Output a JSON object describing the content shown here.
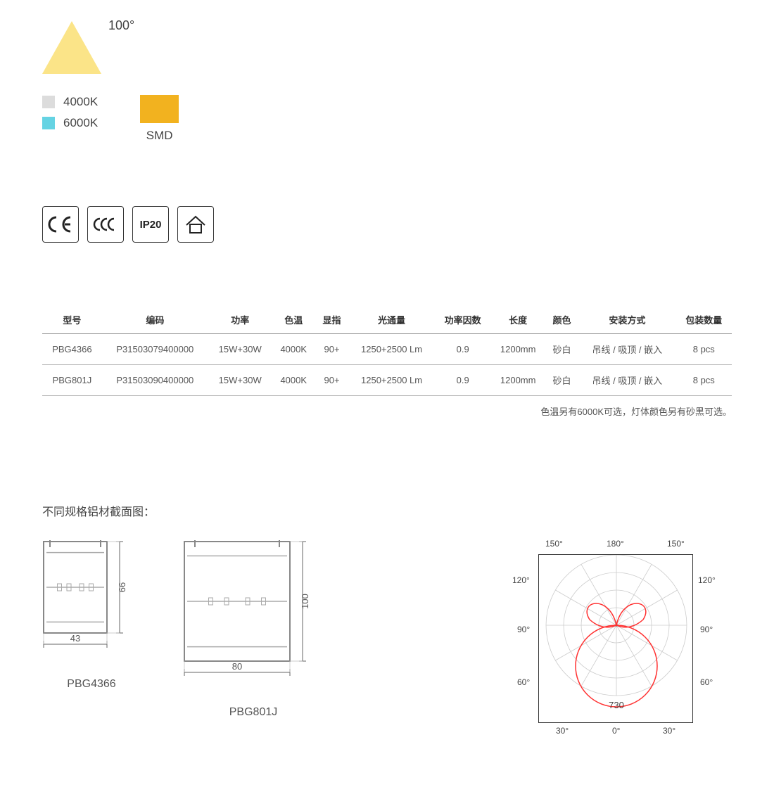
{
  "beam": {
    "angle_label": "100°",
    "triangle_color": "#fbe488"
  },
  "cct": [
    {
      "swatch": "#dcdcdc",
      "label": "4000K"
    },
    {
      "swatch": "#65d3e3",
      "label": "6000K"
    }
  ],
  "smd": {
    "box_color": "#f2b21f",
    "label": "SMD"
  },
  "cert": {
    "ce": "CE",
    "ccc_local": "CCC",
    "ip20": "IP20",
    "indoor": "indoor"
  },
  "table": {
    "headers": [
      "型号",
      "编码",
      "功率",
      "色温",
      "显指",
      "光通量",
      "功率因数",
      "长度",
      "颜色",
      "安装方式",
      "包装数量"
    ],
    "rows": [
      [
        "PBG4366",
        "P31503079400000",
        "15W+30W",
        "4000K",
        "90+",
        "1250+2500 Lm",
        "0.9",
        "1200mm",
        "砂白",
        "吊线 / 吸顶 / 嵌入",
        "8 pcs"
      ],
      [
        "PBG801J",
        "P31503090400000",
        "15W+30W",
        "4000K",
        "90+",
        "1250+2500 Lm",
        "0.9",
        "1200mm",
        "砂白",
        "吊线 / 吸顶 / 嵌入",
        "8 pcs"
      ]
    ]
  },
  "note": "色温另有6000K可选，灯体颜色另有砂黑可选。",
  "section_title": "不同规格铝材截面图：",
  "profiles": [
    {
      "label": "PBG4366",
      "width_mm": "43",
      "height_mm": "66",
      "draw_w": 90,
      "draw_h": 130
    },
    {
      "label": "PBG801J",
      "width_mm": "80",
      "height_mm": "100",
      "draw_w": 150,
      "draw_h": 170
    }
  ],
  "polar": {
    "labels_top": [
      "150°",
      "180°",
      "150°"
    ],
    "labels_upper_side": [
      "120°",
      "120°"
    ],
    "labels_mid_side": [
      "90°",
      "90°"
    ],
    "labels_lower_side": [
      "60°",
      "60°"
    ],
    "labels_bottom": [
      "30°",
      "0°",
      "30°"
    ],
    "center_value": "730",
    "curve_color": "#ff3030",
    "grid_color": "#cccccc"
  }
}
